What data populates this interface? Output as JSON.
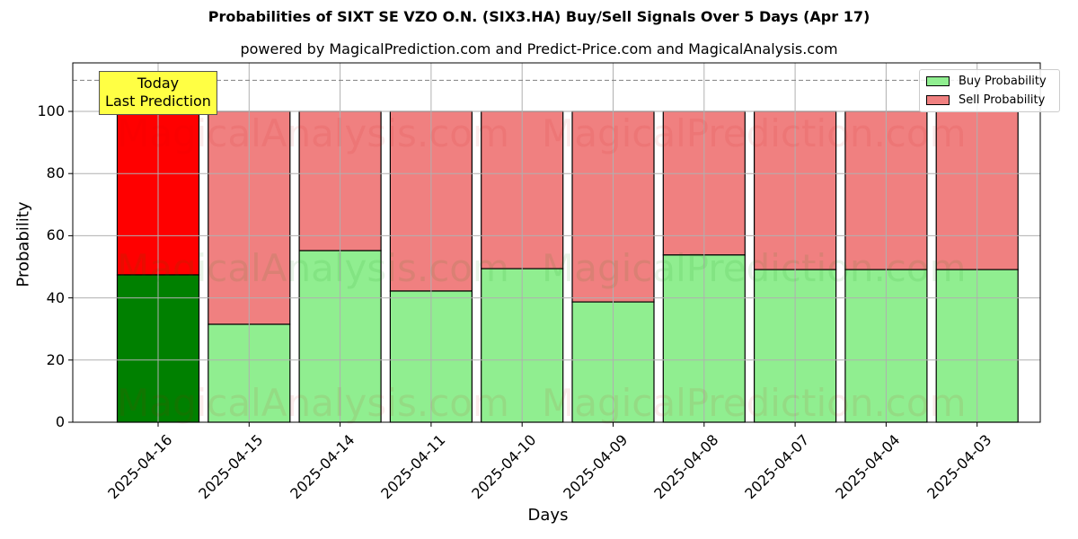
{
  "header": {
    "title": "Probabilities of SIXT SE VZO O.N. (SIX3.HA) Buy/Sell Signals Over 5 Days (Apr 17)",
    "subtitle": "powered by MagicalPrediction.com and Predict-Price.com and MagicalAnalysis.com"
  },
  "annotation": {
    "line1": "Today",
    "line2": "Last Prediction"
  },
  "legend": {
    "buy_label": "Buy Probability",
    "sell_label": "Sell Probability"
  },
  "axes": {
    "xlabel": "Days",
    "ylabel": "Probability",
    "yticks": [
      "0",
      "20",
      "40",
      "60",
      "80",
      "100"
    ]
  },
  "watermarks": [
    "MagicalAnalysis.com",
    "MagicalPrediction.com"
  ],
  "colors": {
    "buy_today": "#008000",
    "sell_today": "#ff0000",
    "buy": "#90ee90",
    "sell": "#f08080",
    "annotation_bg": "#ffff44",
    "dashed_line": "#808080"
  },
  "chart_data": {
    "type": "bar",
    "stacked": true,
    "title": "Probabilities of SIXT SE VZO O.N. (SIX3.HA) Buy/Sell Signals Over 5 Days (Apr 17)",
    "subtitle": "powered by MagicalPrediction.com and Predict-Price.com and MagicalAnalysis.com",
    "xlabel": "Days",
    "ylabel": "Probability",
    "ylim": [
      0,
      115
    ],
    "yticks": [
      0,
      20,
      40,
      60,
      80,
      100
    ],
    "grid": true,
    "legend_position": "upper right",
    "reference_line": {
      "y": 110,
      "style": "dashed"
    },
    "categories": [
      "2025-04-16",
      "2025-04-15",
      "2025-04-14",
      "2025-04-11",
      "2025-04-10",
      "2025-04-09",
      "2025-04-08",
      "2025-04-07",
      "2025-04-04",
      "2025-04-03"
    ],
    "series": [
      {
        "name": "Buy Probability",
        "values": [
          47.4,
          31.5,
          55.2,
          42.2,
          49.4,
          38.7,
          53.8,
          49.1,
          49.1,
          49.1
        ]
      },
      {
        "name": "Sell Probability",
        "values": [
          52.6,
          68.5,
          44.8,
          57.8,
          50.6,
          61.3,
          46.2,
          50.9,
          50.9,
          50.9
        ]
      }
    ],
    "annotations": [
      {
        "text": "Today\nLast Prediction",
        "x": "2025-04-16"
      }
    ]
  }
}
